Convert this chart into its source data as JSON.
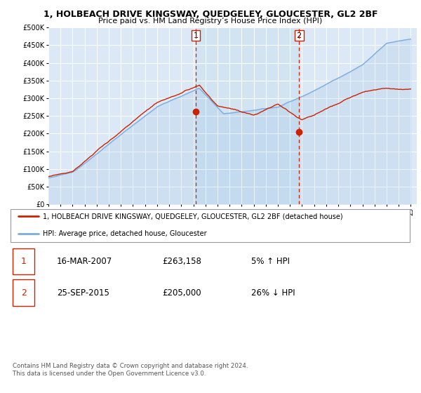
{
  "title": "1, HOLBEACH DRIVE KINGSWAY, QUEDGELEY, GLOUCESTER, GL2 2BF",
  "subtitle": "Price paid vs. HM Land Registry’s House Price Index (HPI)",
  "legend_label_red": "1, HOLBEACH DRIVE KINGSWAY, QUEDGELEY, GLOUCESTER, GL2 2BF (detached house)",
  "legend_label_blue": "HPI: Average price, detached house, Gloucester",
  "footer": "Contains HM Land Registry data © Crown copyright and database right 2024.\nThis data is licensed under the Open Government Licence v3.0.",
  "annotation1_date": "16-MAR-2007",
  "annotation1_price": "£263,158",
  "annotation1_pct": "5% ↑ HPI",
  "annotation2_date": "25-SEP-2015",
  "annotation2_price": "£205,000",
  "annotation2_pct": "26% ↓ HPI",
  "ylim": [
    0,
    500000
  ],
  "yticks": [
    0,
    50000,
    100000,
    150000,
    200000,
    250000,
    300000,
    350000,
    400000,
    450000,
    500000
  ],
  "plot_bg_color": "#dce8f5",
  "shade_color": "#cce0f0",
  "red_color": "#cc2200",
  "blue_color": "#7aade0",
  "vline_color": "#cc2200",
  "sale1_year": 2007.21,
  "sale1_price": 263158,
  "sale2_year": 2015.75,
  "sale2_price": 205000,
  "xstart": 1995,
  "xend": 2025
}
